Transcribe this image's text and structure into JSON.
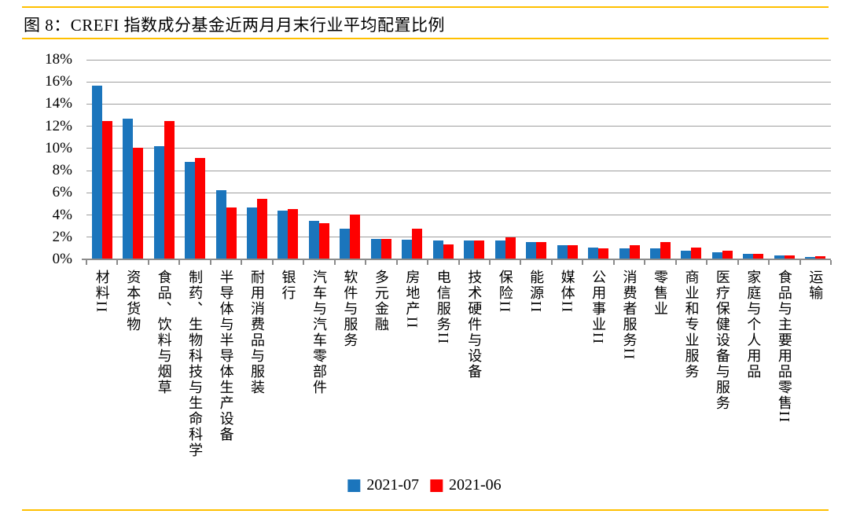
{
  "header": {
    "title": "图 8：CREFI 指数成分基金近两月月末行业平均配置比例"
  },
  "colors": {
    "rule_gold": "#FFC000",
    "grid_gray": "#9E9E9E",
    "axis_gray": "#8C8C8C",
    "text_black": "#000000",
    "series_blue": "#1B75BC",
    "series_red": "#FE0000"
  },
  "chart_data": {
    "type": "bar",
    "title": "图 8：CREFI 指数成分基金近两月月末行业平均配置比例",
    "categories": [
      "材料II",
      "资本货物",
      "食品、饮料与烟草",
      "制药、生物科技与生命科学",
      "半导体与半导体生产设备",
      "耐用消费品与服装",
      "银行",
      "汽车与汽车零部件",
      "软件与服务",
      "多元金融",
      "房地产II",
      "电信服务II",
      "技术硬件与设备",
      "保险II",
      "能源II",
      "媒体II",
      "公用事业II",
      "消费者服务II",
      "零售业",
      "商业和专业服务",
      "医疗保健设备与服务",
      "家庭与个人用品",
      "食品与主要用品零售II",
      "运输"
    ],
    "series": [
      {
        "name": "2021-07",
        "color": "#1B75BC",
        "values": [
          15.6,
          12.6,
          10.1,
          8.7,
          6.2,
          4.6,
          4.3,
          3.4,
          2.7,
          1.8,
          1.7,
          1.6,
          1.6,
          1.6,
          1.5,
          1.2,
          1.0,
          0.9,
          0.9,
          0.7,
          0.6,
          0.4,
          0.25,
          0.15
        ]
      },
      {
        "name": "2021-06",
        "color": "#FE0000",
        "values": [
          12.4,
          10.0,
          12.4,
          9.1,
          4.6,
          5.4,
          4.5,
          3.2,
          4.0,
          1.75,
          2.7,
          1.3,
          1.6,
          1.9,
          1.5,
          1.2,
          0.9,
          1.2,
          1.5,
          1.0,
          0.7,
          0.4,
          0.3,
          0.2
        ]
      }
    ],
    "xlabel": "",
    "ylabel": "",
    "ylim": [
      0,
      18
    ],
    "ytick_step": 2,
    "yticks": [
      "0%",
      "2%",
      "4%",
      "6%",
      "8%",
      "10%",
      "12%",
      "14%",
      "16%",
      "18%"
    ],
    "grid": true,
    "legend_position": "bottom-center"
  }
}
